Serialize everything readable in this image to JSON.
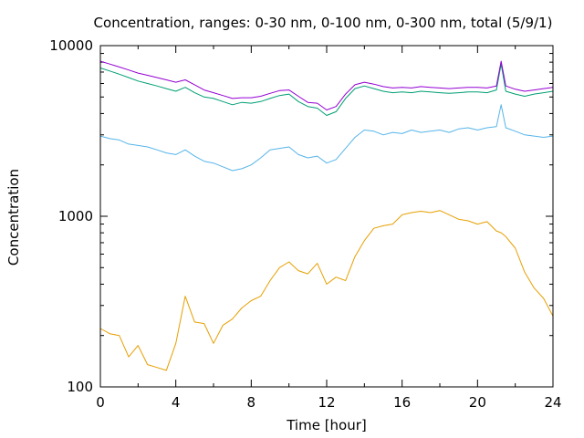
{
  "chart_data": {
    "type": "line",
    "title": "Concentration, ranges: 0-30 nm, 0-100 nm, 0-300 nm, total (5/9/1)",
    "xlabel": "Time [hour]",
    "ylabel": "Concentration",
    "xlim": [
      0,
      24
    ],
    "ylim": [
      100,
      10000
    ],
    "yscale": "log",
    "grid": false,
    "legend": "none",
    "x_ticks": [
      0,
      4,
      8,
      12,
      16,
      20,
      24
    ],
    "x_tick_labels": [
      "0",
      "4",
      "8",
      "12",
      "16",
      "20",
      "24"
    ],
    "y_ticks": [
      100,
      1000,
      10000
    ],
    "y_tick_labels": [
      "100",
      "1000",
      "10000"
    ],
    "x": [
      0,
      0.5,
      1,
      1.5,
      2,
      2.5,
      3,
      3.5,
      4,
      4.5,
      5,
      5.5,
      6,
      6.5,
      7,
      7.5,
      8,
      8.5,
      9,
      9.5,
      10,
      10.5,
      11,
      11.5,
      12,
      12.5,
      13,
      13.5,
      14,
      14.5,
      15,
      15.5,
      16,
      16.5,
      17,
      17.5,
      18,
      18.5,
      19,
      19.5,
      20,
      20.5,
      21,
      21.25,
      21.5,
      22,
      22.5,
      23,
      23.5,
      24
    ],
    "series": [
      {
        "color": "#e69f00",
        "values": [
          220,
          205,
          200,
          150,
          175,
          135,
          130,
          125,
          180,
          340,
          240,
          235,
          180,
          230,
          250,
          290,
          320,
          340,
          420,
          500,
          540,
          480,
          460,
          530,
          400,
          440,
          420,
          580,
          720,
          850,
          880,
          900,
          1020,
          1050,
          1070,
          1050,
          1080,
          1020,
          960,
          940,
          900,
          930,
          820,
          800,
          760,
          650,
          470,
          380,
          330,
          260
        ]
      },
      {
        "color": "#56b4e9",
        "values": [
          2950,
          2850,
          2800,
          2650,
          2600,
          2550,
          2450,
          2350,
          2300,
          2450,
          2250,
          2100,
          2050,
          1950,
          1850,
          1900,
          2000,
          2200,
          2450,
          2500,
          2550,
          2300,
          2200,
          2250,
          2050,
          2150,
          2500,
          2900,
          3200,
          3150,
          3000,
          3100,
          3050,
          3200,
          3100,
          3150,
          3200,
          3100,
          3250,
          3300,
          3200,
          3300,
          3350,
          4500,
          3300,
          3150,
          3000,
          2950,
          2900,
          2950
        ]
      },
      {
        "color": "#009e73",
        "values": [
          7400,
          7100,
          6800,
          6500,
          6200,
          6000,
          5800,
          5600,
          5400,
          5700,
          5300,
          5000,
          4900,
          4700,
          4500,
          4650,
          4600,
          4700,
          4900,
          5100,
          5200,
          4700,
          4400,
          4300,
          3900,
          4100,
          4900,
          5600,
          5800,
          5600,
          5400,
          5300,
          5350,
          5300,
          5400,
          5350,
          5300,
          5250,
          5300,
          5350,
          5350,
          5300,
          5500,
          7800,
          5400,
          5200,
          5050,
          5200,
          5300,
          5400
        ]
      },
      {
        "color": "#9400d3",
        "values": [
          8100,
          7800,
          7500,
          7200,
          6900,
          6700,
          6500,
          6300,
          6100,
          6300,
          5900,
          5500,
          5300,
          5100,
          4900,
          4950,
          4950,
          5050,
          5250,
          5450,
          5500,
          5050,
          4650,
          4600,
          4200,
          4400,
          5200,
          5900,
          6100,
          5950,
          5750,
          5650,
          5700,
          5650,
          5750,
          5700,
          5650,
          5600,
          5650,
          5700,
          5700,
          5650,
          5800,
          8100,
          5800,
          5550,
          5400,
          5500,
          5600,
          5700
        ]
      }
    ]
  }
}
